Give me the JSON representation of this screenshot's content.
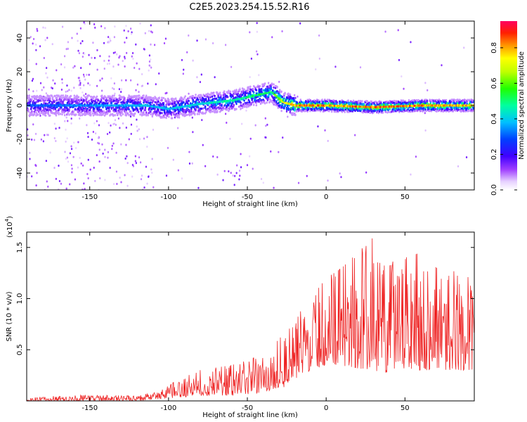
{
  "title": "C2E5.2023.254.15.52.R16",
  "chart_data": [
    {
      "type": "heatmap",
      "name": "spectrogram",
      "xlabel": "Height of straight line (km)",
      "ylabel": "Frequency (Hz)",
      "xlim": [
        -190,
        94
      ],
      "ylim": [
        -50,
        50
      ],
      "xticks": [
        -150,
        -100,
        -50,
        0,
        50
      ],
      "yticks": [
        -40,
        -20,
        0,
        20,
        40
      ],
      "colorbar": {
        "label": "Normalized spectral amplitude",
        "range": [
          0.0,
          0.95
        ],
        "ticks": [
          0.0,
          0.2,
          0.4,
          0.6,
          0.8
        ],
        "tick_labels": [
          "0.0",
          "0.2",
          "0.4",
          "0.6",
          "0.8"
        ]
      },
      "ridge": {
        "description": "main signal band centred near 0 Hz",
        "center_x": [
          -190,
          -150,
          -115,
          -100,
          -80,
          -60,
          -45,
          -35,
          -28,
          -20,
          0,
          30,
          60,
          94
        ],
        "center_hz": [
          0,
          0,
          0,
          -2,
          1,
          3,
          6,
          8,
          2,
          0,
          0,
          -1,
          0,
          0
        ],
        "peak_amplitude": [
          0.35,
          0.4,
          0.45,
          0.45,
          0.5,
          0.55,
          0.6,
          0.6,
          0.8,
          0.95,
          0.95,
          0.95,
          0.95,
          0.9
        ]
      }
    },
    {
      "type": "line",
      "name": "snr",
      "xlabel": "Height of straight line (km)",
      "ylabel": "SNR (10 * v/v)",
      "yscale_label": "(x10",
      "yscale_exp": "4",
      "yscale_suffix": ")",
      "xlim": [
        -190,
        94
      ],
      "ylim": [
        0,
        1.65
      ],
      "xticks": [
        -150,
        -100,
        -50,
        0,
        50
      ],
      "yticks": [
        0.5,
        1.0,
        1.5
      ],
      "ytick_labels": [
        "0.5",
        "1.0",
        "1.5"
      ],
      "color": "#ee2222",
      "envelope": {
        "x": [
          -190,
          -160,
          -120,
          -105,
          -95,
          -80,
          -60,
          -40,
          -30,
          -20,
          -10,
          0,
          10,
          20,
          30,
          40,
          50,
          60,
          70,
          80,
          94
        ],
        "min": [
          0.0,
          0.0,
          0.0,
          0.02,
          0.03,
          0.05,
          0.05,
          0.08,
          0.1,
          0.2,
          0.3,
          0.35,
          0.35,
          0.3,
          0.3,
          0.25,
          0.3,
          0.3,
          0.3,
          0.3,
          0.3
        ],
        "max": [
          0.03,
          0.06,
          0.05,
          0.1,
          0.2,
          0.3,
          0.35,
          0.45,
          0.6,
          0.8,
          1.0,
          1.2,
          1.3,
          1.45,
          1.6,
          1.35,
          1.4,
          1.45,
          1.3,
          1.3,
          1.2
        ]
      }
    }
  ]
}
